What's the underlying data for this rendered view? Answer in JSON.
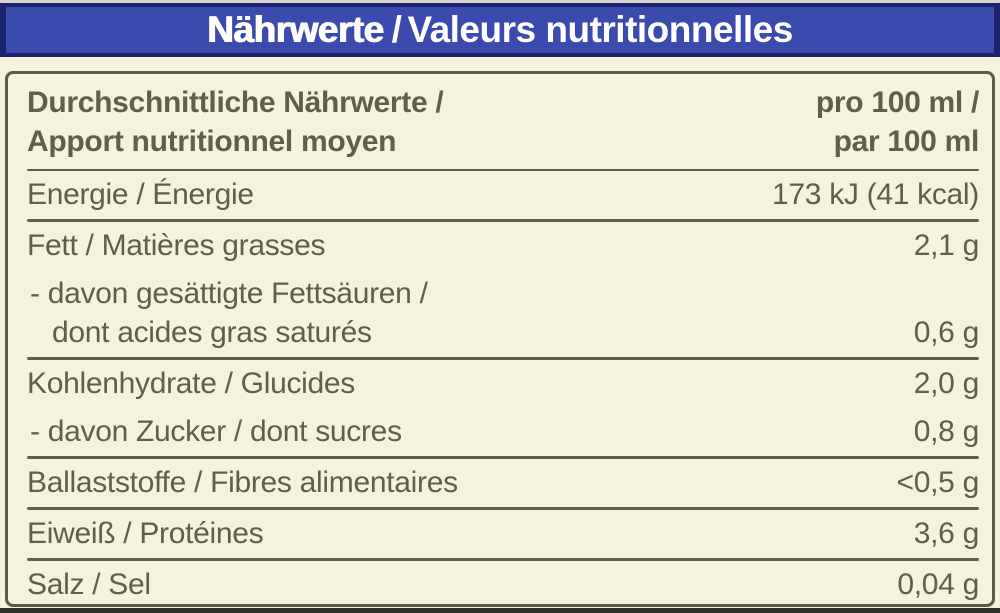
{
  "colors": {
    "title_bar_background": "#3b4aad",
    "title_bar_border": "#1b236f",
    "title_text": "#ffffff",
    "label_background": "#f5f3da",
    "table_text": "#5f6044",
    "table_border": "#5a5b40",
    "divider": "#5e5f45"
  },
  "title_bar": {
    "de": "Nährwerte",
    "sep": "/",
    "fr": "Valeurs nutritionnelles"
  },
  "table": {
    "header": {
      "left_line1": "Durchschnittliche Nährwerte /",
      "left_line2": "Apport nutritionnel moyen",
      "right_line1": "pro 100 ml /",
      "right_line2": "par 100 ml"
    },
    "rows": {
      "energy": {
        "label": "Energie / Énergie",
        "value": "173 kJ (41 kcal)"
      },
      "fat": {
        "label": "Fett / Matières grasses",
        "value": "2,1 g"
      },
      "saturated": {
        "label_line1": "- davon gesättigte Fettsäuren /",
        "label_line2": "dont acides gras saturés",
        "value": "0,6 g"
      },
      "carbs": {
        "label": "Kohlenhydrate / Glucides",
        "value": "2,0 g"
      },
      "sugars": {
        "label": "- davon Zucker / dont sucres",
        "value": "0,8 g"
      },
      "fiber": {
        "label": "Ballaststoffe / Fibres alimentaires",
        "value": "<0,5 g"
      },
      "protein": {
        "label": "Eiweiß / Protéines",
        "value": "3,6 g"
      },
      "salt": {
        "label": "Salz / Sel",
        "value": "0,04 g"
      }
    }
  }
}
